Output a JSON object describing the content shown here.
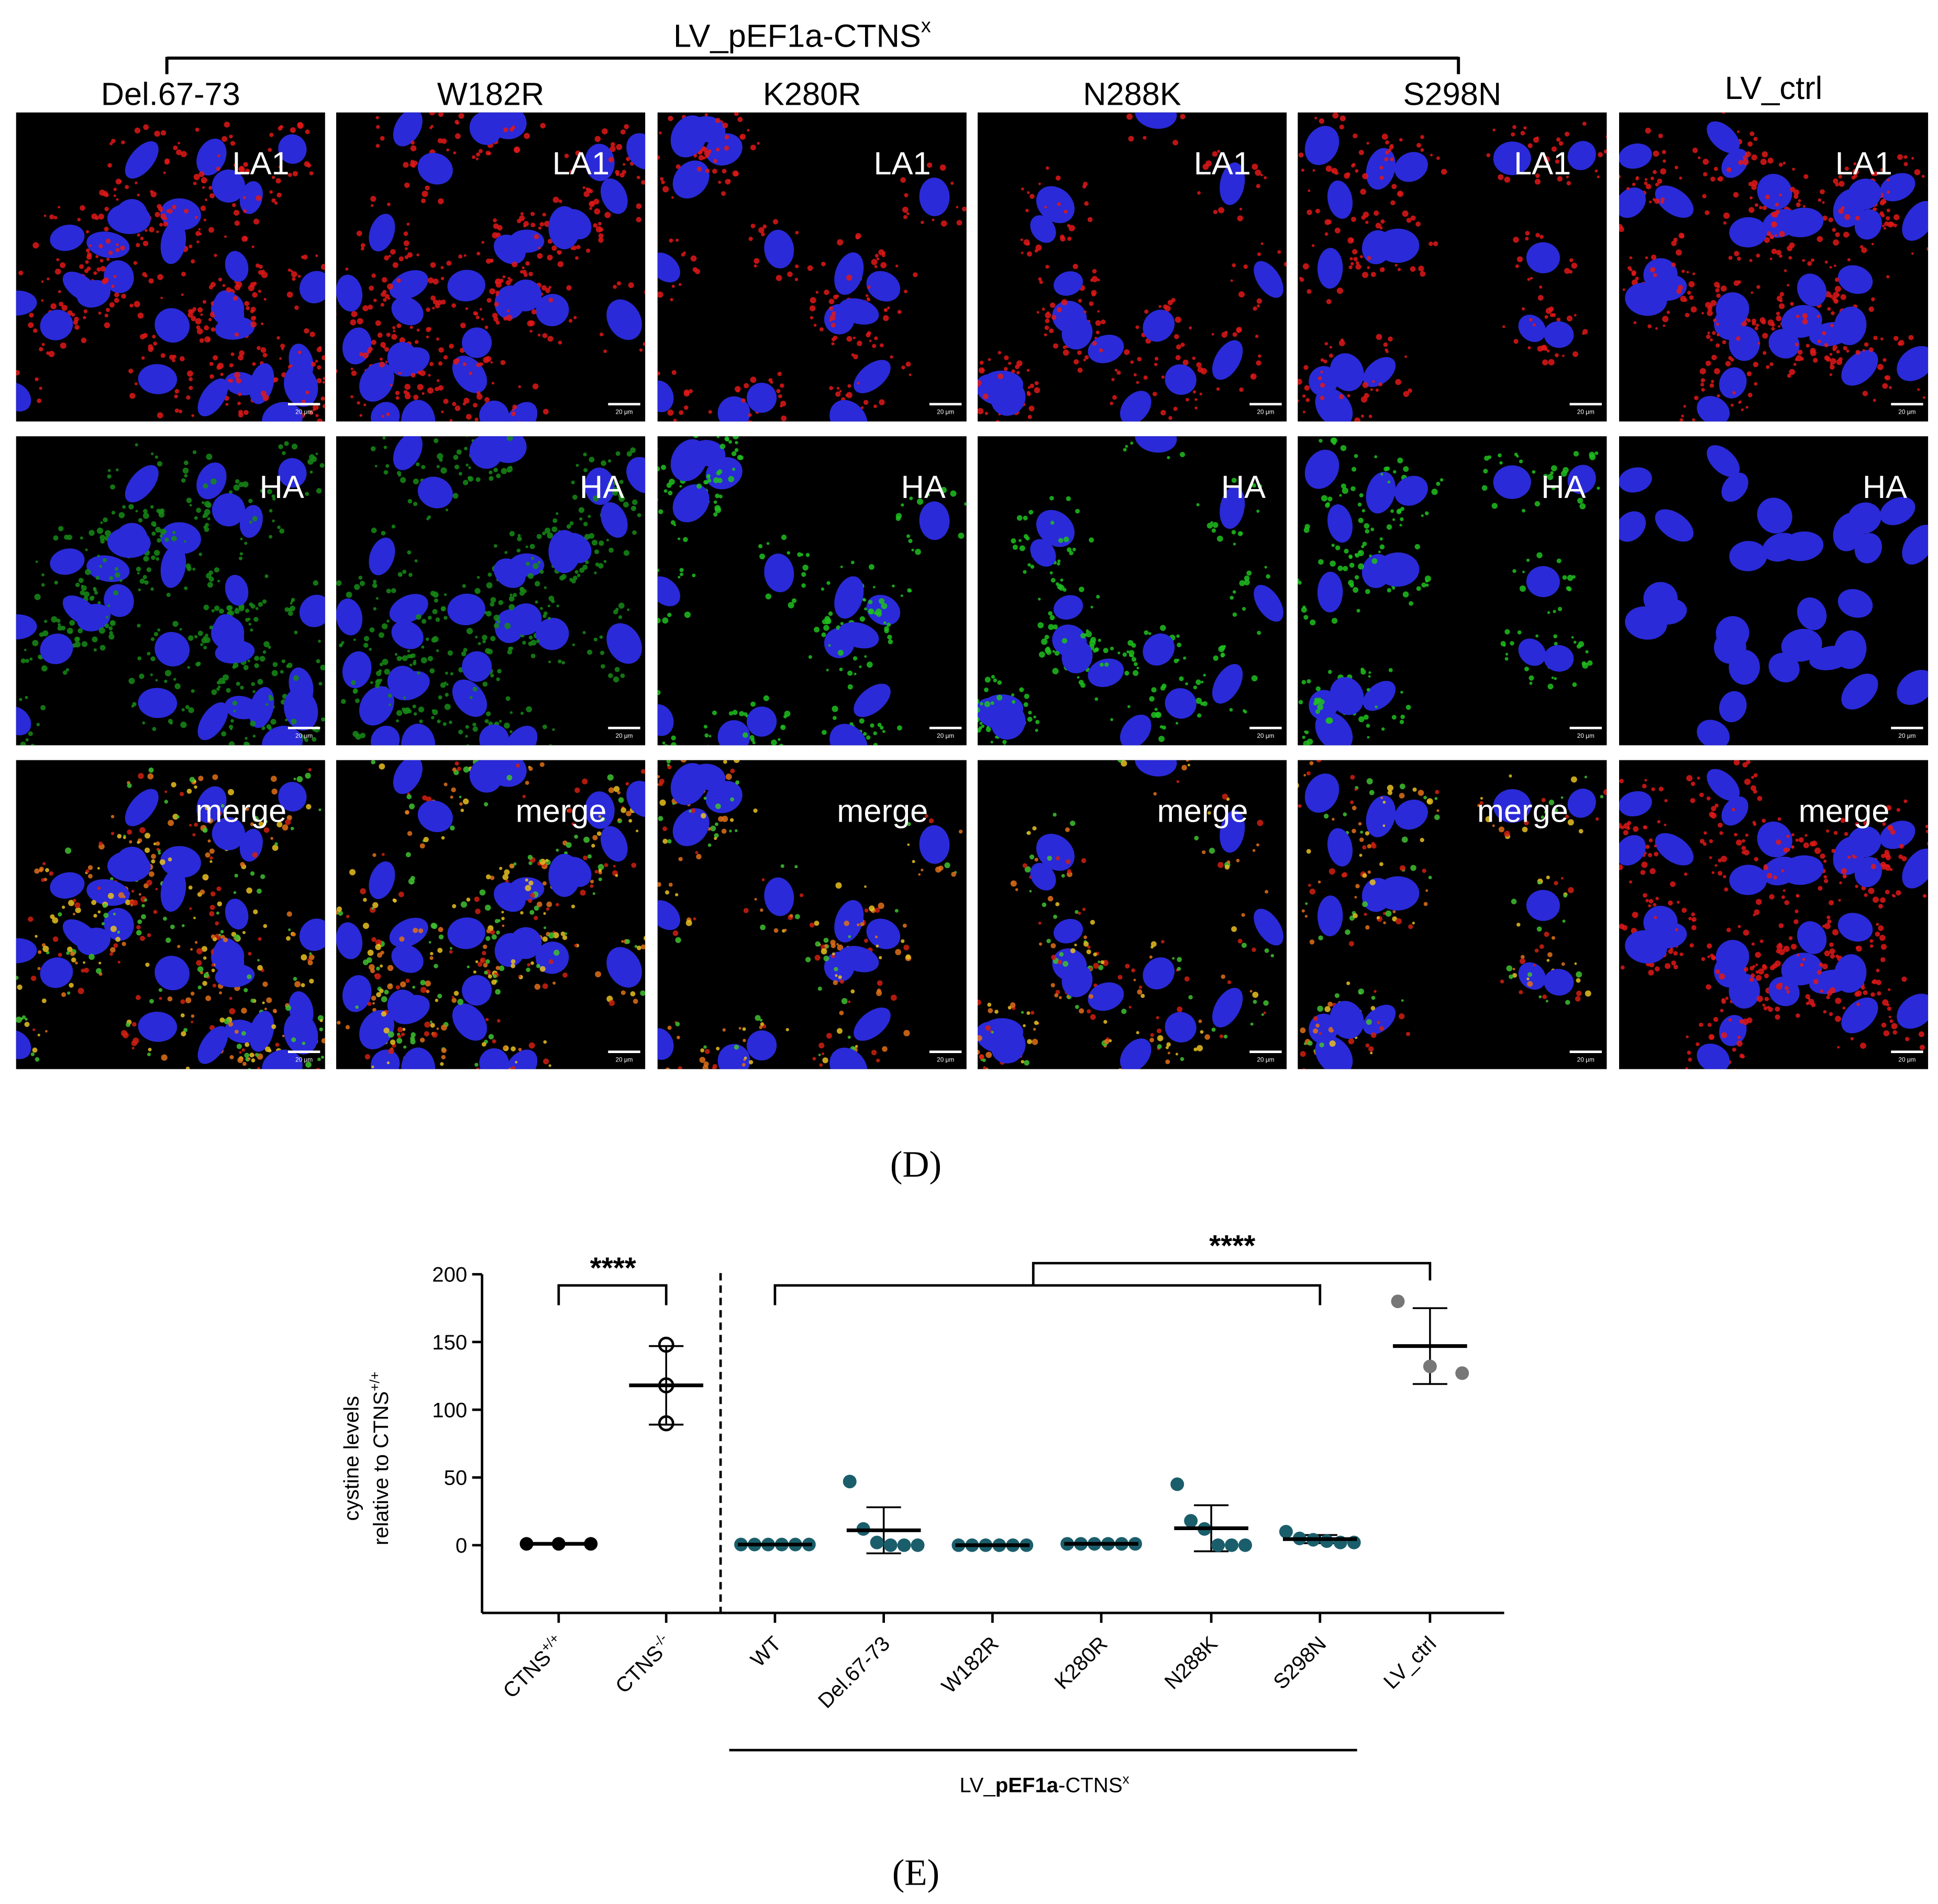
{
  "panel_d": {
    "label": "(D)",
    "group_title": "LV_pEF1a-CTNS",
    "group_title_sup": "x",
    "columns": [
      "Del.67-73",
      "W182R",
      "K280R",
      "N288K",
      "S298N",
      "LV_ctrl"
    ],
    "rows": [
      "LA1",
      "HA",
      "merge"
    ],
    "scale_bar": "20 μm"
  },
  "chart_data": {
    "type": "dot",
    "label": "(E)",
    "y_label": [
      "cystine levels",
      "relative to CTNS"
    ],
    "y_label_sup": "+/+",
    "categories": [
      "CTNS",
      "CTNS",
      "WT",
      "Del.67-73",
      "W182R",
      "K280R",
      "N288K",
      "S298N",
      "LV_ctrl"
    ],
    "category_superscripts": [
      "+/+",
      "-/-",
      null,
      null,
      null,
      null,
      null,
      null,
      null
    ],
    "points": [
      [
        1,
        1,
        1
      ],
      [
        148,
        118,
        90
      ],
      [
        0.5,
        0.5,
        0.5,
        0.5,
        0.5,
        0.5
      ],
      [
        47,
        12,
        2,
        0,
        0,
        0
      ],
      [
        0,
        0,
        0,
        0,
        0,
        0
      ],
      [
        1,
        1,
        1,
        1,
        1,
        1
      ],
      [
        45,
        18,
        12,
        0,
        0,
        0
      ],
      [
        10,
        5,
        4,
        3,
        2,
        2
      ],
      [
        180,
        132,
        127
      ]
    ],
    "means": [
      1,
      118,
      0.5,
      11,
      0,
      1,
      12.5,
      4.5,
      147
    ],
    "sds": [
      0,
      29,
      0,
      17,
      0,
      0,
      17,
      3,
      28
    ],
    "colors": [
      "#000000",
      "#000000",
      "#1b5e6b",
      "#1b5e6b",
      "#1b5e6b",
      "#1b5e6b",
      "#1b5e6b",
      "#1b5e6b",
      "#777777"
    ],
    "hollow": [
      false,
      true,
      false,
      false,
      false,
      false,
      false,
      false,
      false
    ],
    "ylim": [
      -50,
      200
    ],
    "yticks": [
      0,
      50,
      100,
      150,
      200
    ],
    "significance": [
      "****",
      "****"
    ],
    "group_label": [
      "LV_",
      "pEF1a",
      "-CTNS",
      "x"
    ]
  }
}
